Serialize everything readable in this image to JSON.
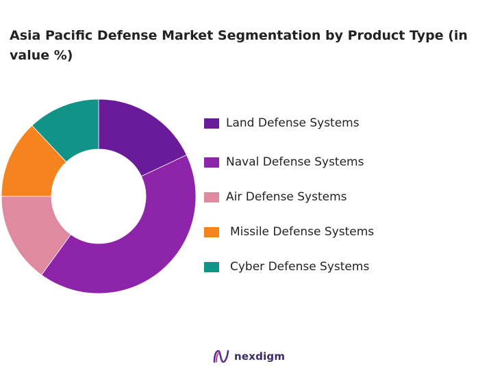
{
  "chart_data": {
    "type": "pie",
    "title": "Asia Pacific Defense Market Segmentation by Product Type (in value %)",
    "categories": [
      "Land Defense Systems",
      "Naval Defense Systems",
      "Air Defense Systems",
      "Missile Defense Systems",
      "Cyber Defense Systems"
    ],
    "values": [
      18,
      42,
      15,
      13,
      12
    ],
    "colors": [
      "#6a1b9a",
      "#8e24aa",
      "#e08aa2",
      "#f5841f",
      "#119387"
    ],
    "legend_position": "right",
    "donut": true
  },
  "footer": {
    "brand": "nexdigm",
    "logo_icon": "nexdigm-logo-icon"
  }
}
